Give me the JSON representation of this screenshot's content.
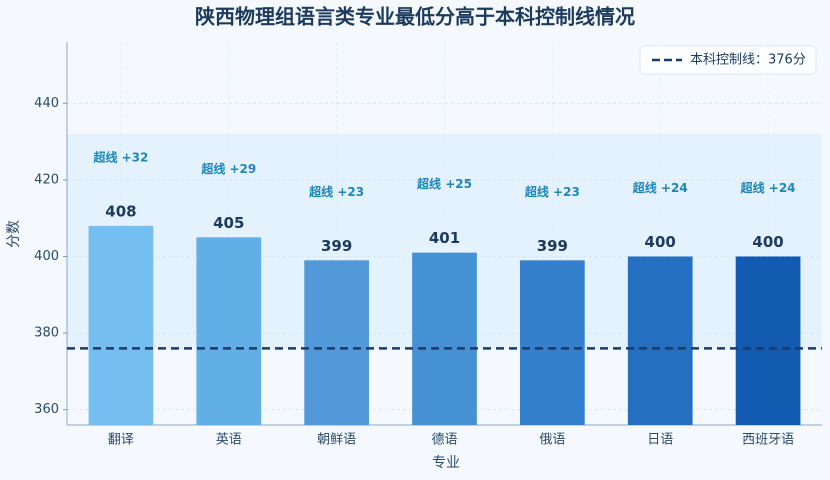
{
  "chart_data": {
    "type": "bar",
    "title": "陕西物理组语言类专业最低分高于本科控制线情况",
    "xlabel": "专业",
    "ylabel": "分数",
    "categories": [
      "翻译",
      "英语",
      "朝鲜语",
      "德语",
      "俄语",
      "日语",
      "西班牙语"
    ],
    "values": [
      408,
      405,
      399,
      401,
      399,
      400,
      400
    ],
    "colors": [
      "#74bfef",
      "#62aee6",
      "#5199d9",
      "#4690d4",
      "#3580cc",
      "#256fc0",
      "#125bb0"
    ],
    "annotations": [
      "超线 +32",
      "超线 +29",
      "超线 +23",
      "超线 +25",
      "超线 +23",
      "超线 +24",
      "超线 +24"
    ],
    "reference_line": {
      "value": 376,
      "label": "本科控制线：376分",
      "color": "#1b3a6b"
    },
    "highlight_band": [
      376,
      432
    ],
    "ylim": [
      356,
      456
    ],
    "yticks": [
      360,
      380,
      400,
      420,
      440
    ],
    "grid": true,
    "legend": "upper right"
  }
}
